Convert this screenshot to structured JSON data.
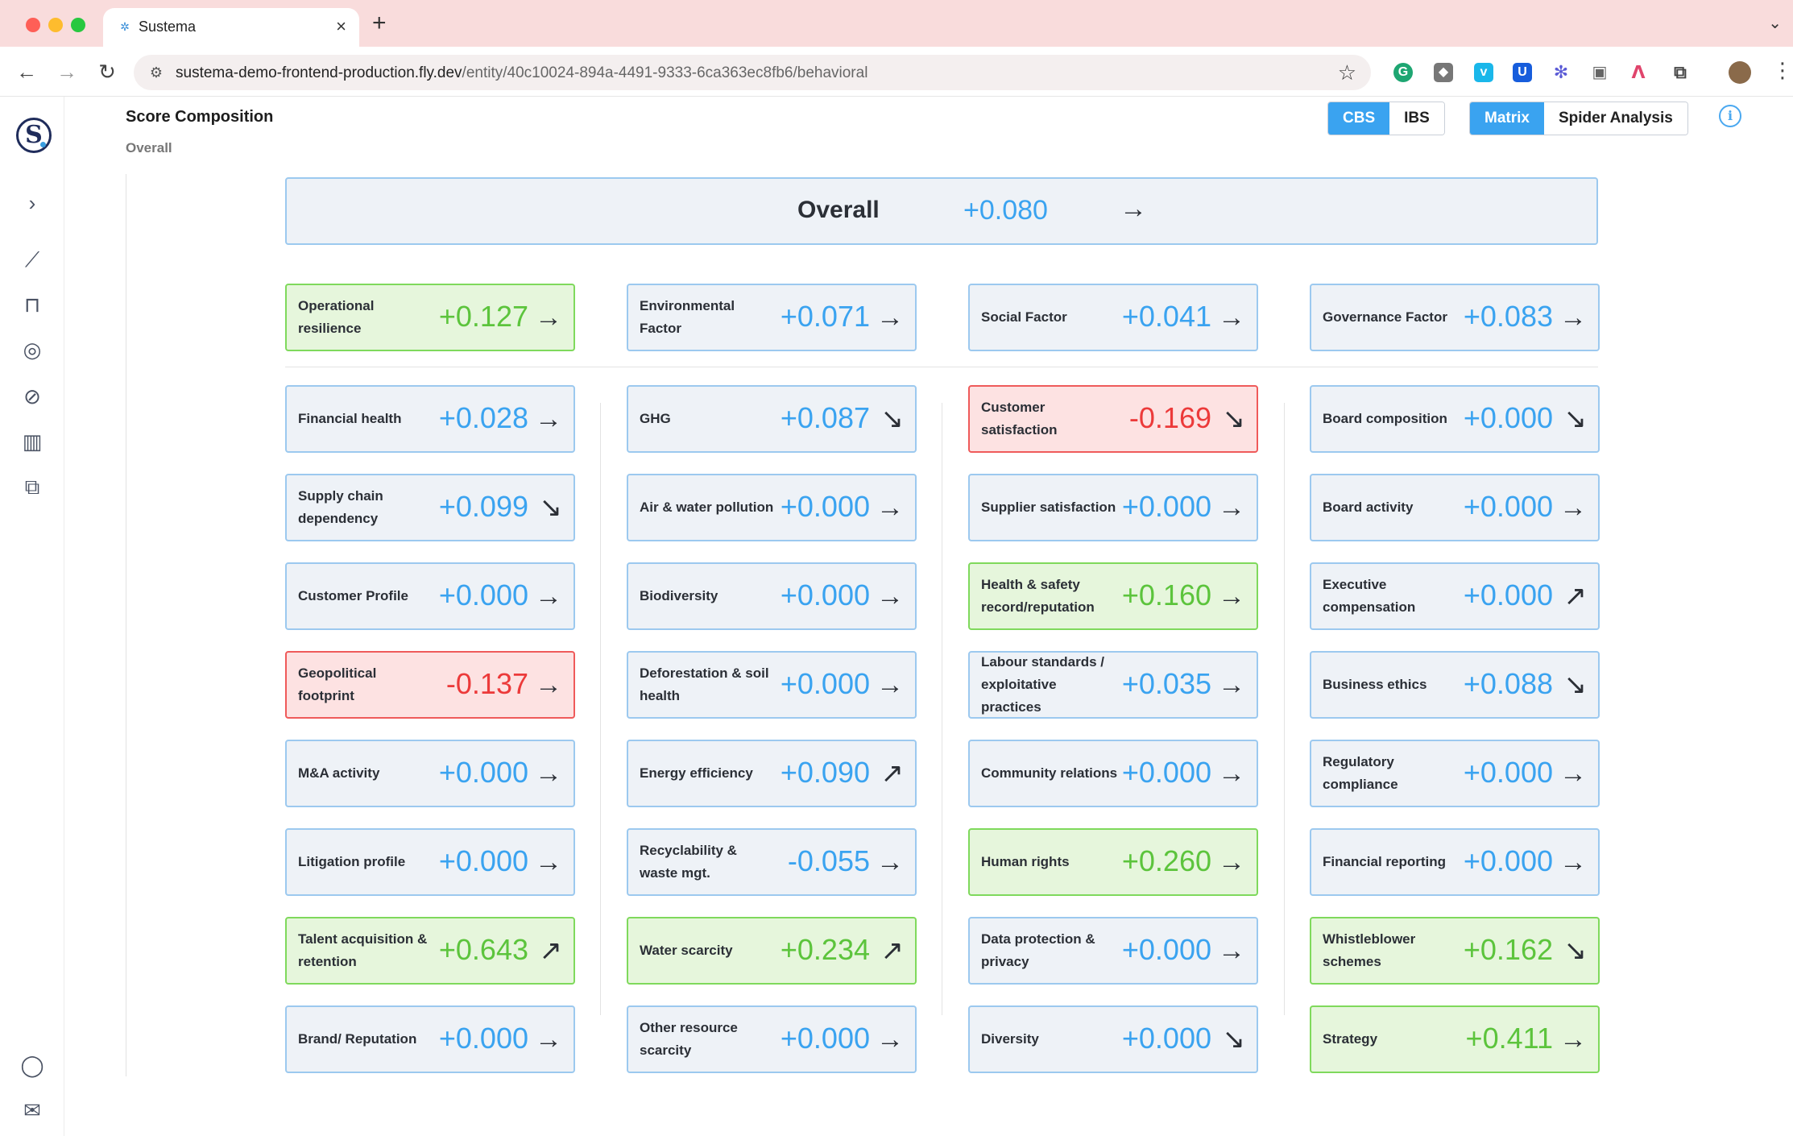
{
  "browser": {
    "tab_title": "Sustema",
    "url_host": "sustema-demo-frontend-production.fly.dev",
    "url_path": "/entity/40c10024-894a-4491-9333-6ca363ec8fb6/behavioral"
  },
  "page": {
    "title": "Score Composition",
    "subtitle": "Overall"
  },
  "toggles": {
    "score_type": [
      "CBS",
      "IBS"
    ],
    "score_type_active": "CBS",
    "view": [
      "Matrix",
      "Spider Analysis"
    ],
    "view_active": "Matrix"
  },
  "overall": {
    "label": "Overall",
    "score": "+0.080",
    "trend": "flat"
  },
  "factors": [
    {
      "label": "Operational resilience",
      "score": "+0.127",
      "status": "green",
      "trend": "flat"
    },
    {
      "label": "Environmental Factor",
      "score": "+0.071",
      "status": "neutral",
      "trend": "flat"
    },
    {
      "label": "Social Factor",
      "score": "+0.041",
      "status": "neutral",
      "trend": "flat"
    },
    {
      "label": "Governance Factor",
      "score": "+0.083",
      "status": "neutral",
      "trend": "flat"
    }
  ],
  "columns": [
    [
      {
        "label": "Financial health",
        "score": "+0.028",
        "status": "neutral",
        "trend": "flat"
      },
      {
        "label": "Supply chain dependency",
        "score": "+0.099",
        "status": "neutral",
        "trend": "down"
      },
      {
        "label": "Customer Profile",
        "score": "+0.000",
        "status": "neutral",
        "trend": "flat"
      },
      {
        "label": "Geopolitical footprint",
        "score": "-0.137",
        "status": "red",
        "trend": "flat"
      },
      {
        "label": "M&A activity",
        "score": "+0.000",
        "status": "neutral",
        "trend": "flat"
      },
      {
        "label": "Litigation profile",
        "score": "+0.000",
        "status": "neutral",
        "trend": "flat"
      },
      {
        "label": "Talent acquisition & retention",
        "score": "+0.643",
        "status": "green",
        "trend": "up"
      },
      {
        "label": "Brand/ Reputation",
        "score": "+0.000",
        "status": "neutral",
        "trend": "flat"
      }
    ],
    [
      {
        "label": "GHG",
        "score": "+0.087",
        "status": "neutral",
        "trend": "down"
      },
      {
        "label": "Air & water pollution",
        "score": "+0.000",
        "status": "neutral",
        "trend": "flat"
      },
      {
        "label": "Biodiversity",
        "score": "+0.000",
        "status": "neutral",
        "trend": "flat"
      },
      {
        "label": "Deforestation & soil health",
        "score": "+0.000",
        "status": "neutral",
        "trend": "flat"
      },
      {
        "label": "Energy efficiency",
        "score": "+0.090",
        "status": "neutral",
        "trend": "up"
      },
      {
        "label": "Recyclability & waste mgt.",
        "score": "-0.055",
        "status": "neutral",
        "trend": "flat"
      },
      {
        "label": "Water scarcity",
        "score": "+0.234",
        "status": "green",
        "trend": "up"
      },
      {
        "label": "Other resource scarcity",
        "score": "+0.000",
        "status": "neutral",
        "trend": "flat"
      }
    ],
    [
      {
        "label": "Customer satisfaction",
        "score": "-0.169",
        "status": "red",
        "trend": "down"
      },
      {
        "label": "Supplier satisfaction",
        "score": "+0.000",
        "status": "neutral",
        "trend": "flat"
      },
      {
        "label": "Health & safety record/reputation",
        "score": "+0.160",
        "status": "green",
        "trend": "flat"
      },
      {
        "label": "Labour standards / exploitative practices",
        "score": "+0.035",
        "status": "neutral",
        "trend": "flat"
      },
      {
        "label": "Community relations",
        "score": "+0.000",
        "status": "neutral",
        "trend": "flat"
      },
      {
        "label": "Human rights",
        "score": "+0.260",
        "status": "green",
        "trend": "flat"
      },
      {
        "label": "Data protection & privacy",
        "score": "+0.000",
        "status": "neutral",
        "trend": "flat"
      },
      {
        "label": "Diversity",
        "score": "+0.000",
        "status": "neutral",
        "trend": "down"
      }
    ],
    [
      {
        "label": "Board composition",
        "score": "+0.000",
        "status": "neutral",
        "trend": "down"
      },
      {
        "label": "Board activity",
        "score": "+0.000",
        "status": "neutral",
        "trend": "flat"
      },
      {
        "label": "Executive compensation",
        "score": "+0.000",
        "status": "neutral",
        "trend": "up"
      },
      {
        "label": "Business ethics",
        "score": "+0.088",
        "status": "neutral",
        "trend": "down"
      },
      {
        "label": "Regulatory compliance",
        "score": "+0.000",
        "status": "neutral",
        "trend": "flat"
      },
      {
        "label": "Financial reporting",
        "score": "+0.000",
        "status": "neutral",
        "trend": "flat"
      },
      {
        "label": "Whistleblower schemes",
        "score": "+0.162",
        "status": "green",
        "trend": "down"
      },
      {
        "label": "Strategy",
        "score": "+0.411",
        "status": "green",
        "trend": "flat"
      }
    ]
  ],
  "colors": {
    "score_neutral": "#3aa3f0",
    "score_positive": "#5cc43c",
    "score_negative": "#ec3a3a",
    "accent": "#3aa3f0"
  },
  "icons": {
    "sidebar": [
      "chevron-right-icon",
      "line-chart-icon",
      "bookmark-icon",
      "target-icon",
      "orbit-icon",
      "bar-chart-icon",
      "layers-icon",
      "user-icon",
      "mail-icon"
    ]
  }
}
